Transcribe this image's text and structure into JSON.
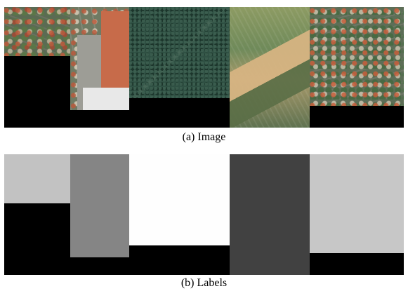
{
  "captions": {
    "image": "(a) Image",
    "labels": "(b) Labels"
  },
  "label_gray_values": {
    "tile_1": "#c2c2c2",
    "tile_2": "#858585",
    "tile_3": "#fefefe",
    "tile_4": "#414141",
    "tile_5": "#c7c7c7"
  }
}
